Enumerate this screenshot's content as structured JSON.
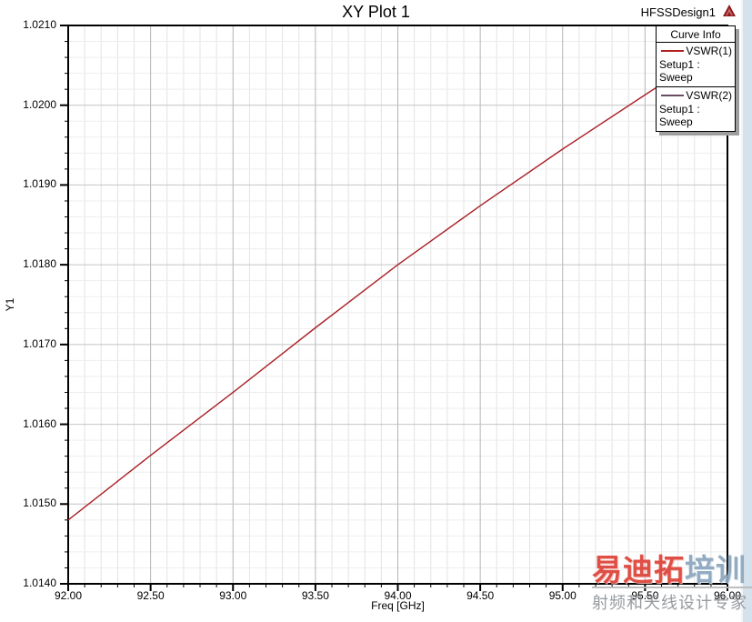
{
  "header": {
    "title": "XY Plot 1",
    "design_name": "HFSSDesign1",
    "logo_icon": "red-triangle-logo",
    "logo_color": "#8b1a1a"
  },
  "legend": {
    "title": "Curve Info",
    "entries": [
      {
        "label": "VSWR(1)",
        "setup": "Setup1 : Sweep",
        "color": "#b32024"
      },
      {
        "label": "VSWR(2)",
        "setup": "Setup1 : Sweep",
        "color": "#6a4c62"
      }
    ]
  },
  "chart_data": {
    "type": "line",
    "title": "XY Plot 1",
    "xlabel": "Freq [GHz]",
    "ylabel": "Y1",
    "xlim": [
      92.0,
      96.0
    ],
    "ylim": [
      1.014,
      1.021
    ],
    "x_major_step": 0.5,
    "x_minor_step": 0.1,
    "y_major_step": 0.001,
    "y_minor_step": 0.0002,
    "grid": true,
    "legend_position": "top-right",
    "xtick_labels": [
      "92.00",
      "92.50",
      "93.00",
      "93.50",
      "94.00",
      "94.50",
      "95.00",
      "95.50",
      "96.00"
    ],
    "ytick_labels": [
      "1.0140",
      "1.0150",
      "1.0160",
      "1.0170",
      "1.0180",
      "1.0190",
      "1.0200",
      "1.0210"
    ],
    "x": [
      92.0,
      92.5,
      93.0,
      93.5,
      94.0,
      94.5,
      95.0,
      95.5,
      96.0
    ],
    "series": [
      {
        "name": "VSWR(1)",
        "color": "#b32024",
        "values": [
          1.0148,
          1.01561,
          1.0164,
          1.01721,
          1.018,
          1.01874,
          1.01945,
          1.02013,
          1.0208
        ]
      },
      {
        "name": "VSWR(2)",
        "color": "#6a4c62",
        "values": [
          1.0148,
          1.01561,
          1.0164,
          1.01721,
          1.018,
          1.01874,
          1.01945,
          1.02013,
          1.0208
        ]
      }
    ]
  },
  "watermark": {
    "brand_red": "易迪拓",
    "brand_blue": "培训",
    "tagline": "射频和天线设计专家",
    "red_color": "#dd4136",
    "blue_color": "#8ca6bd",
    "tagline_color": "#8e9398"
  }
}
